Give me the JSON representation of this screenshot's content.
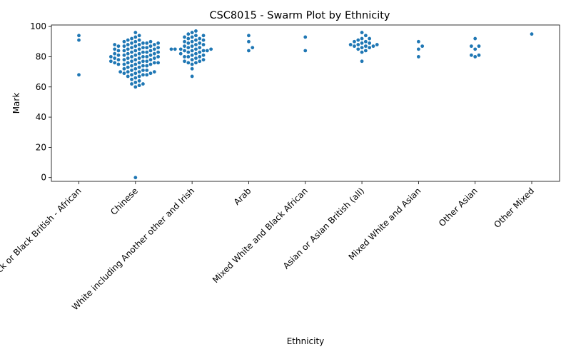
{
  "chart_data": {
    "type": "scatter",
    "title": "CSC8015 - Swarm Plot by Ethnicity",
    "xlabel": "Ethnicity",
    "ylabel": "Mark",
    "ylim": [
      -2.5,
      101
    ],
    "yticks": [
      0,
      20,
      40,
      60,
      80,
      100
    ],
    "grid": false,
    "legend": "none",
    "color": "#1f77b4",
    "categories": [
      "Black or Black British - African",
      "Chinese",
      "White including Another other and Irish",
      "Arab",
      "Mixed White and Black African",
      "Asian or Asian British (all)",
      "Mixed White and Asian",
      "Other Asian",
      "Other Mixed"
    ],
    "series": [
      {
        "values": [
          94,
          91,
          68
        ]
      },
      {
        "values": [
          0,
          60,
          61,
          62,
          62,
          63,
          64,
          65,
          66,
          67,
          67,
          68,
          68,
          68,
          69,
          69,
          69,
          70,
          70,
          70,
          70,
          71,
          71,
          71,
          72,
          72,
          73,
          73,
          74,
          74,
          74,
          75,
          75,
          75,
          75,
          76,
          76,
          76,
          76,
          76,
          77,
          77,
          77,
          77,
          78,
          78,
          78,
          78,
          79,
          79,
          79,
          79,
          80,
          80,
          80,
          80,
          80,
          81,
          81,
          81,
          81,
          82,
          82,
          82,
          82,
          83,
          83,
          83,
          83,
          84,
          84,
          84,
          84,
          85,
          85,
          85,
          85,
          86,
          86,
          86,
          86,
          87,
          87,
          87,
          87,
          88,
          88,
          88,
          88,
          89,
          89,
          89,
          89,
          90,
          90,
          90,
          91,
          91,
          92,
          93,
          94,
          96
        ]
      },
      {
        "values": [
          67,
          72,
          75,
          76,
          76,
          77,
          77,
          78,
          78,
          79,
          80,
          80,
          80,
          81,
          81,
          82,
          82,
          83,
          83,
          84,
          84,
          84,
          84,
          85,
          85,
          85,
          85,
          85,
          86,
          86,
          87,
          87,
          88,
          88,
          89,
          89,
          90,
          90,
          91,
          91,
          92,
          92,
          93,
          93,
          94,
          94,
          95,
          96,
          97
        ]
      },
      {
        "values": [
          94,
          90,
          86,
          84
        ]
      },
      {
        "values": [
          93,
          84
        ]
      },
      {
        "values": [
          77,
          83,
          84,
          85,
          86,
          86,
          87,
          87,
          87,
          88,
          88,
          88,
          89,
          89,
          90,
          90,
          91,
          92,
          92,
          94,
          96
        ]
      },
      {
        "values": [
          90,
          87,
          85,
          80
        ]
      },
      {
        "values": [
          92,
          87,
          87,
          85,
          81,
          81,
          80
        ]
      },
      {
        "values": [
          95
        ]
      }
    ]
  }
}
